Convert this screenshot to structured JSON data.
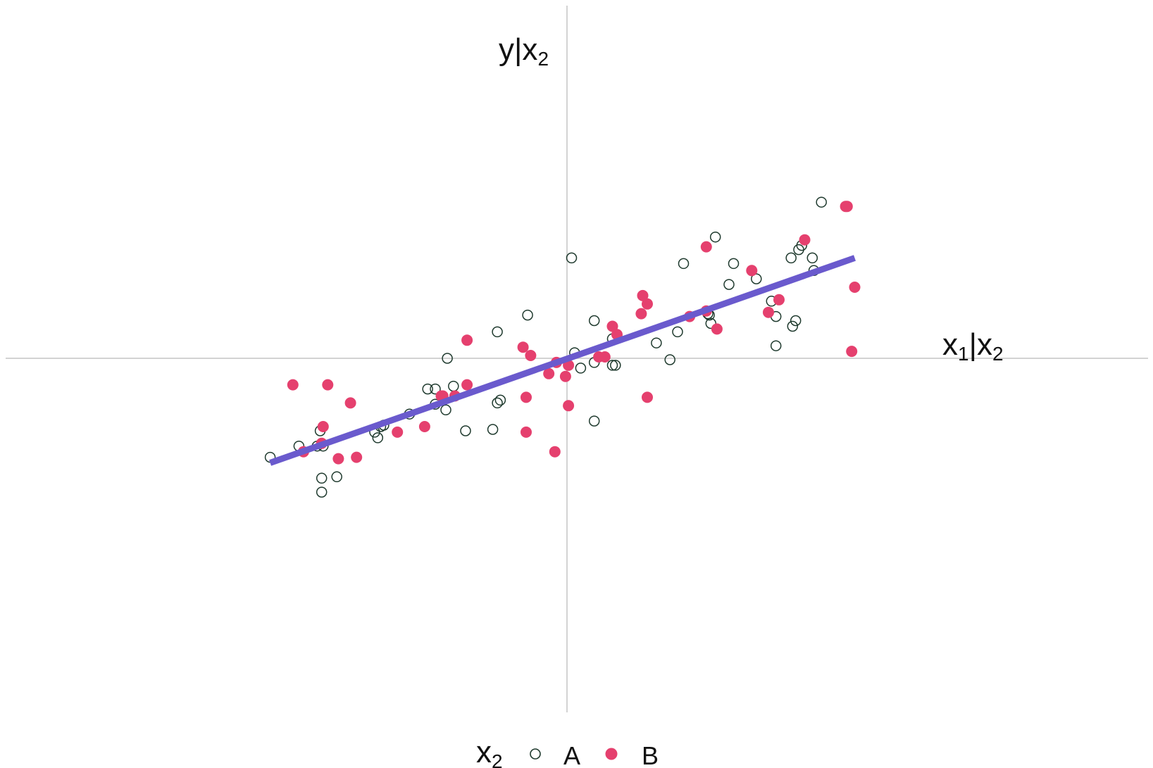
{
  "chart_data": {
    "type": "scatter",
    "title": "",
    "xlabel": {
      "base": "x",
      "sub1": "1",
      "bar": "|x",
      "sub2": "2"
    },
    "ylabel": {
      "base": "y",
      "bar": "|x",
      "sub": "2"
    },
    "xlim": [
      -2.4,
      2.4
    ],
    "ylim": [
      -1.9,
      1.9
    ],
    "axes_through_origin": true,
    "grid": false,
    "legend": {
      "position": "bottom",
      "title": {
        "base": "x",
        "sub": "2"
      },
      "entries": [
        {
          "label": "A",
          "marker": "open-circle"
        },
        {
          "label": "B",
          "marker": "filled-circle"
        }
      ]
    },
    "colors": {
      "A": "#1f3a2e",
      "B": "#e5406e",
      "line": "#6a5acd",
      "axis": "#d3d3d3"
    },
    "fit_line": {
      "x": [
        -1.96,
        1.9
      ],
      "y": [
        -0.75,
        0.72
      ]
    },
    "series": [
      {
        "name": "A",
        "points": [
          [
            -1.96,
            -0.71
          ],
          [
            -1.77,
            -0.63
          ],
          [
            -1.65,
            -0.63
          ],
          [
            -1.63,
            -0.52
          ],
          [
            -1.61,
            -0.63
          ],
          [
            -1.62,
            -0.86
          ],
          [
            -1.62,
            -0.96
          ],
          [
            -1.52,
            -0.85
          ],
          [
            -1.27,
            -0.53
          ],
          [
            -1.25,
            -0.57
          ],
          [
            -1.23,
            -0.49
          ],
          [
            -1.21,
            -0.48
          ],
          [
            -1.04,
            -0.4
          ],
          [
            -0.92,
            -0.22
          ],
          [
            -0.87,
            -0.33
          ],
          [
            -0.87,
            -0.22
          ],
          [
            -0.8,
            -0.37
          ],
          [
            -0.79,
            0.0
          ],
          [
            -0.75,
            -0.2
          ],
          [
            -0.67,
            -0.52
          ],
          [
            -0.49,
            -0.51
          ],
          [
            -0.46,
            -0.32
          ],
          [
            -0.46,
            0.19
          ],
          [
            -0.44,
            -0.3
          ],
          [
            -0.26,
            0.31
          ],
          [
            0.03,
            0.72
          ],
          [
            0.05,
            0.04
          ],
          [
            0.09,
            -0.07
          ],
          [
            0.18,
            -0.45
          ],
          [
            0.18,
            0.27
          ],
          [
            0.18,
            -0.03
          ],
          [
            0.3,
            0.14
          ],
          [
            0.3,
            -0.05
          ],
          [
            0.32,
            -0.05
          ],
          [
            0.59,
            0.11
          ],
          [
            0.68,
            -0.01
          ],
          [
            0.73,
            0.19
          ],
          [
            0.77,
            0.68
          ],
          [
            0.93,
            0.32
          ],
          [
            0.94,
            0.31
          ],
          [
            0.95,
            0.25
          ],
          [
            0.98,
            0.87
          ],
          [
            1.07,
            0.53
          ],
          [
            1.1,
            0.68
          ],
          [
            1.25,
            0.57
          ],
          [
            1.35,
            0.41
          ],
          [
            1.38,
            0.09
          ],
          [
            1.38,
            0.3
          ],
          [
            1.49,
            0.23
          ],
          [
            1.48,
            0.72
          ],
          [
            1.51,
            0.27
          ],
          [
            1.53,
            0.78
          ],
          [
            1.55,
            0.81
          ],
          [
            1.62,
            0.72
          ],
          [
            1.63,
            0.63
          ],
          [
            1.68,
            1.12
          ]
        ]
      },
      {
        "name": "B",
        "points": [
          [
            -1.81,
            -0.19
          ],
          [
            -1.74,
            -0.67
          ],
          [
            -1.62,
            -0.61
          ],
          [
            -1.61,
            -0.49
          ],
          [
            -1.58,
            -0.19
          ],
          [
            -1.51,
            -0.72
          ],
          [
            -1.43,
            -0.32
          ],
          [
            -1.39,
            -0.71
          ],
          [
            -1.12,
            -0.53
          ],
          [
            -0.94,
            -0.49
          ],
          [
            -0.83,
            -0.27
          ],
          [
            -0.82,
            -0.27
          ],
          [
            -0.74,
            -0.27
          ],
          [
            -0.66,
            -0.19
          ],
          [
            -0.66,
            0.13
          ],
          [
            -0.29,
            0.08
          ],
          [
            -0.27,
            -0.28
          ],
          [
            -0.27,
            -0.53
          ],
          [
            -0.24,
            0.02
          ],
          [
            -0.12,
            -0.11
          ],
          [
            -0.08,
            -0.67
          ],
          [
            -0.07,
            -0.03
          ],
          [
            -0.01,
            -0.13
          ],
          [
            0.01,
            -0.05
          ],
          [
            0.01,
            -0.34
          ],
          [
            0.21,
            0.01
          ],
          [
            0.25,
            0.01
          ],
          [
            0.3,
            0.23
          ],
          [
            0.33,
            0.17
          ],
          [
            0.49,
            0.32
          ],
          [
            0.5,
            0.45
          ],
          [
            0.53,
            0.39
          ],
          [
            0.53,
            -0.28
          ],
          [
            0.81,
            0.3
          ],
          [
            0.92,
            0.8
          ],
          [
            0.92,
            0.34
          ],
          [
            0.99,
            0.21
          ],
          [
            1.22,
            0.63
          ],
          [
            1.33,
            0.33
          ],
          [
            1.4,
            0.42
          ],
          [
            1.57,
            0.85
          ],
          [
            1.84,
            1.09
          ],
          [
            1.85,
            1.09
          ],
          [
            1.88,
            0.05
          ],
          [
            1.9,
            0.51
          ]
        ]
      }
    ]
  }
}
